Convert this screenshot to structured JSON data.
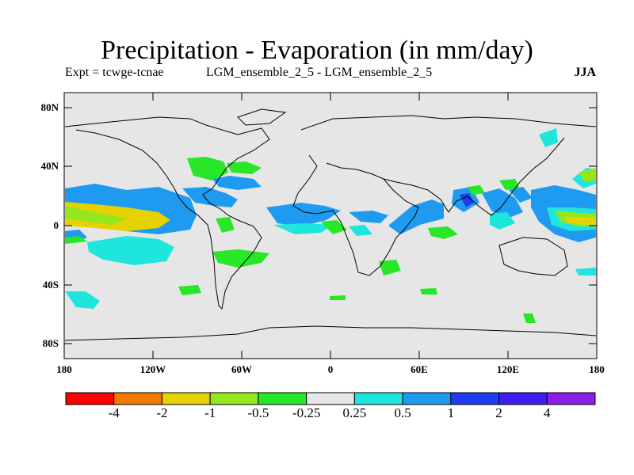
{
  "title": "Precipitation - Evaporation (in mm/day)",
  "experiment_label": "Expt = tcwge-tcnae",
  "comparison_label": "LGM_ensemble_2_5 - LGM_ensemble_2_5",
  "season": "JJA",
  "latitude_ticks": [
    "80N",
    "40N",
    "0",
    "40S",
    "80S"
  ],
  "longitude_ticks": [
    "180",
    "120W",
    "60W",
    "0",
    "60E",
    "120E",
    "180"
  ],
  "colorbar": {
    "colors": [
      "#ff0000",
      "#f07800",
      "#e6d200",
      "#96e61e",
      "#28e628",
      "#e6e6e6",
      "#1ee6dc",
      "#1e9bf0",
      "#1e3cf0",
      "#3c1ef0",
      "#8c1ee6"
    ],
    "labels": [
      "-4",
      "-2",
      "-1",
      "-0.5",
      "-0.25",
      "0.25",
      "0.5",
      "1",
      "2",
      "4"
    ]
  },
  "colors": {
    "ocean_background": "#e6e6e6",
    "coastline": "#000000"
  }
}
